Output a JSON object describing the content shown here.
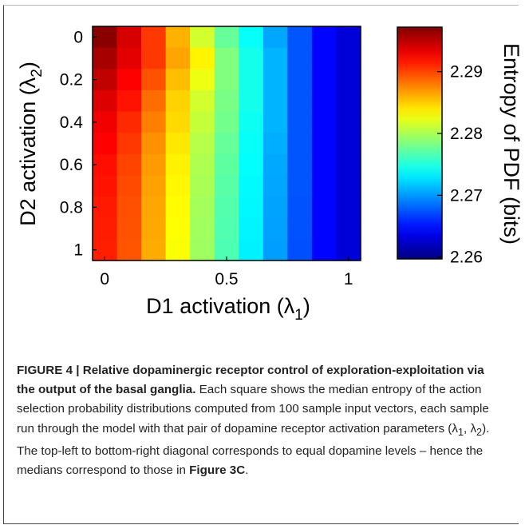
{
  "chart_data": {
    "type": "heatmap",
    "x_ticks": [
      "0",
      "0.5",
      "1"
    ],
    "y_ticks": [
      "0",
      "0.2",
      "0.4",
      "0.6",
      "0.8",
      "1"
    ],
    "x": [
      0,
      0.1,
      0.2,
      0.3,
      0.4,
      0.5,
      0.6,
      0.7,
      0.8,
      0.9,
      1.0
    ],
    "y": [
      0,
      0.1,
      0.2,
      0.3,
      0.4,
      0.5,
      0.6,
      0.7,
      0.8,
      0.9,
      1.0
    ],
    "xlim": [
      0,
      1
    ],
    "ylim": [
      0,
      1
    ],
    "xlabel": "D1 activation (λ",
    "xlabel_sub": "1",
    "xlabel_close": ")",
    "ylabel": "D2 activation (λ",
    "ylabel_sub": "2",
    "ylabel_close": ")",
    "colorbar": {
      "label": "Entropy of PDF (bits)",
      "ticks": [
        "2.26",
        "2.27",
        "2.28",
        "2.29"
      ],
      "tick_values": [
        2.26,
        2.27,
        2.28,
        2.29
      ],
      "range": [
        2.2597,
        2.2972
      ],
      "colormap": "jet"
    },
    "z": [
      [
        2.2968,
        2.294,
        2.2905,
        2.286,
        2.2815,
        2.2775,
        2.274,
        2.2705,
        2.2675,
        2.2645,
        2.263
      ],
      [
        2.2958,
        2.2935,
        2.2905,
        2.2865,
        2.2835,
        2.2785,
        2.2745,
        2.271,
        2.2675,
        2.2645,
        2.263
      ],
      [
        2.2948,
        2.2925,
        2.2895,
        2.2855,
        2.2825,
        2.2785,
        2.2745,
        2.271,
        2.2675,
        2.2645,
        2.263
      ],
      [
        2.2938,
        2.2918,
        2.2885,
        2.2848,
        2.2815,
        2.2782,
        2.2745,
        2.271,
        2.2675,
        2.2645,
        2.263
      ],
      [
        2.293,
        2.291,
        2.2878,
        2.2845,
        2.281,
        2.278,
        2.2742,
        2.271,
        2.2675,
        2.2645,
        2.263
      ],
      [
        2.2925,
        2.2905,
        2.2872,
        2.284,
        2.2805,
        2.2775,
        2.274,
        2.2708,
        2.2675,
        2.2645,
        2.263
      ],
      [
        2.292,
        2.29,
        2.2868,
        2.2836,
        2.2802,
        2.2772,
        2.2738,
        2.2706,
        2.2675,
        2.2645,
        2.263
      ],
      [
        2.2918,
        2.2898,
        2.2866,
        2.2834,
        2.28,
        2.277,
        2.2736,
        2.2705,
        2.2675,
        2.2645,
        2.263
      ],
      [
        2.2916,
        2.2896,
        2.2864,
        2.2832,
        2.2798,
        2.2768,
        2.2735,
        2.2704,
        2.2674,
        2.2645,
        2.263
      ],
      [
        2.2915,
        2.2895,
        2.2863,
        2.2831,
        2.2797,
        2.2767,
        2.2734,
        2.2703,
        2.2674,
        2.2645,
        2.263
      ],
      [
        2.2914,
        2.2894,
        2.2862,
        2.283,
        2.2796,
        2.2766,
        2.2733,
        2.2702,
        2.2673,
        2.2645,
        2.263
      ]
    ]
  },
  "caption": {
    "label": "FIGURE 4 | Relative dopaminergic receptor control of exploration-exploitation via the output of the basal ganglia.",
    "body_1": " Each square shows the median entropy of the action selection probability distributions computed from 100 sample input vectors, each sample run through the model with that pair of dopamine receptor activation parameters (λ",
    "sub_1": "1",
    "body_2": ", λ",
    "sub_2": "2",
    "body_3": "). The top-left to bottom-right diagonal corresponds to equal dopamine levels – hence the medians correspond to those in ",
    "ref": "Figure 3C",
    "end": "."
  }
}
